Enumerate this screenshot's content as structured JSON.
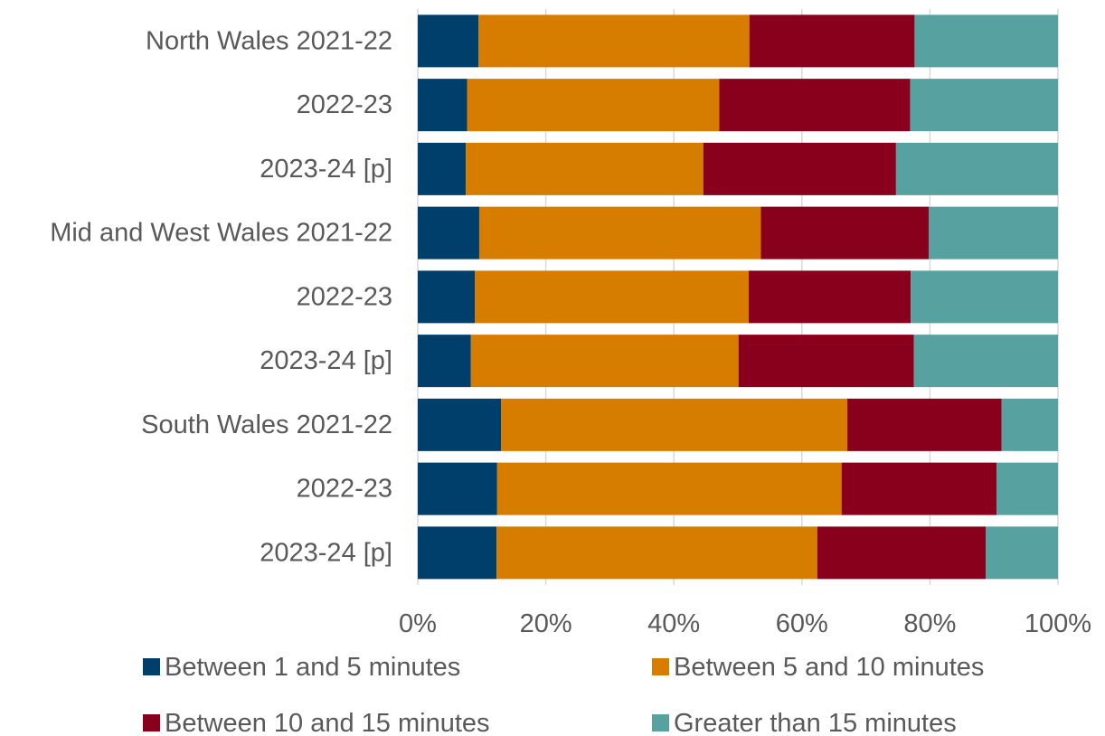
{
  "chart_data": {
    "type": "bar",
    "orientation": "horizontal",
    "stacked": "percent",
    "categories": [
      "North Wales 2021-22",
      "2022-23",
      "2023-24 [p]",
      "Mid and West Wales 2021-22",
      "2022-23",
      "2023-24 [p]",
      "South Wales 2021-22",
      "2022-23",
      "2023-24 [p]"
    ],
    "series": [
      {
        "name": "Between 1 and 5 minutes",
        "color": "#003f6b",
        "values": [
          9.5,
          7.7,
          7.5,
          9.6,
          8.9,
          8.3,
          13.0,
          12.4,
          12.3
        ]
      },
      {
        "name": "Between 5 and 10 minutes",
        "color": "#d67d00",
        "values": [
          42.3,
          39.4,
          37.1,
          44.0,
          42.8,
          41.8,
          54.1,
          53.8,
          50.1
        ]
      },
      {
        "name": "Between 10 and 15 minutes",
        "color": "#88001c",
        "values": [
          25.8,
          29.8,
          30.1,
          26.2,
          25.3,
          27.4,
          24.1,
          24.2,
          26.3
        ]
      },
      {
        "name": "Greater than 15 minutes",
        "color": "#57a1a0",
        "values": [
          22.4,
          23.1,
          25.3,
          20.2,
          23.0,
          22.5,
          8.8,
          9.6,
          11.3
        ]
      }
    ],
    "xlim": [
      0,
      100
    ],
    "xticks": [
      "0%",
      "20%",
      "40%",
      "60%",
      "80%",
      "100%"
    ],
    "grid": true,
    "legend_position": "bottom",
    "title": "",
    "xlabel": "",
    "ylabel": ""
  }
}
